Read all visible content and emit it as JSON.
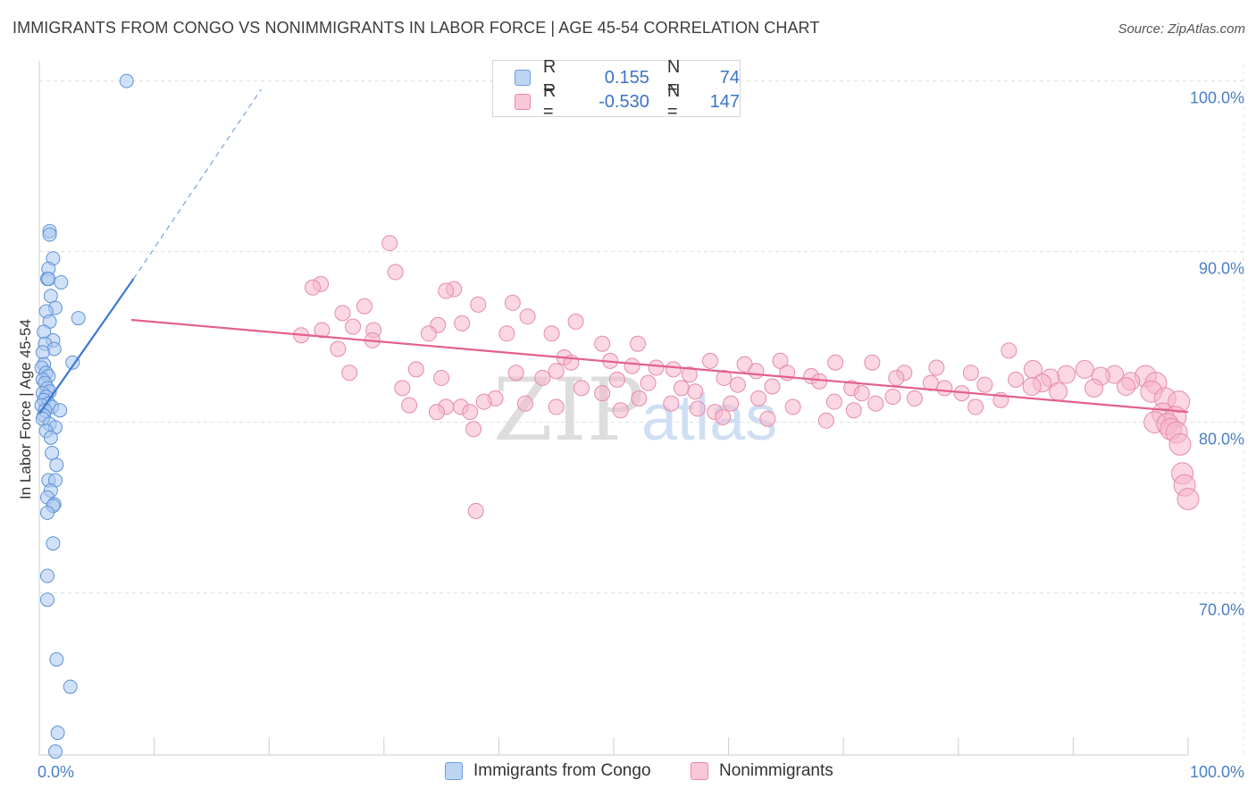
{
  "title": "IMMIGRANTS FROM CONGO VS NONIMMIGRANTS IN LABOR FORCE | AGE 45-54 CORRELATION CHART",
  "source": "Source: ZipAtlas.com",
  "watermark": {
    "zip": "ZIP",
    "atlas": "atlas"
  },
  "legend": {
    "r_label": "R =",
    "n_label": "N =",
    "series1": {
      "r": "0.155",
      "n": "74"
    },
    "series2": {
      "r": "-0.530",
      "n": "147"
    }
  },
  "bottom_legend": {
    "series1": "Immigrants from Congo",
    "series2": "Nonimmigrants"
  },
  "colors": {
    "blue": "#3a78d4",
    "blue_fill": "#a9c8f0",
    "pink": "#e35f8f",
    "pink_fill": "#f5b6cc",
    "tick": "#4a7fc4"
  },
  "chart_data": {
    "type": "scatter",
    "title": "IMMIGRANTS FROM CONGO VS NONIMMIGRANTS IN LABOR FORCE | AGE 45-54 CORRELATION CHART",
    "xlabel": "",
    "ylabel": "In Labor Force | Age 45-54",
    "xlim": [
      0,
      100
    ],
    "ylim": [
      60.5,
      101.5
    ],
    "x_tick_labels": [
      "0.0%",
      "100.0%"
    ],
    "y_ticks": [
      {
        "value": 100,
        "label": "100.0%"
      },
      {
        "value": 90,
        "label": "90.0%"
      },
      {
        "value": 80,
        "label": "80.0%"
      },
      {
        "value": 70,
        "label": "70.0%"
      }
    ],
    "series": [
      {
        "name": "Immigrants from Congo",
        "r": 0.155,
        "n": 74,
        "trend": {
          "x0": 0.0,
          "y0": 80.5,
          "x1": 8.2,
          "y1": 88.4,
          "dash_to_x": 19.3,
          "dash_to_y": 99.5
        },
        "points": [
          [
            7.6,
            100.0
          ],
          [
            0.9,
            91.2
          ],
          [
            0.9,
            91.0
          ],
          [
            1.2,
            89.6
          ],
          [
            0.8,
            89.0
          ],
          [
            0.7,
            88.4
          ],
          [
            0.8,
            88.4
          ],
          [
            1.9,
            88.2
          ],
          [
            1.0,
            87.4
          ],
          [
            1.4,
            86.7
          ],
          [
            0.6,
            86.5
          ],
          [
            3.4,
            86.1
          ],
          [
            0.9,
            85.9
          ],
          [
            0.4,
            85.3
          ],
          [
            1.2,
            84.8
          ],
          [
            0.5,
            84.6
          ],
          [
            1.3,
            84.3
          ],
          [
            0.3,
            84.1
          ],
          [
            2.9,
            83.5
          ],
          [
            0.4,
            83.4
          ],
          [
            0.2,
            83.2
          ],
          [
            0.6,
            82.9
          ],
          [
            0.8,
            82.7
          ],
          [
            0.3,
            82.5
          ],
          [
            0.5,
            82.3
          ],
          [
            0.7,
            82.0
          ],
          [
            0.9,
            81.8
          ],
          [
            0.3,
            81.7
          ],
          [
            0.6,
            81.5
          ],
          [
            0.4,
            81.3
          ],
          [
            0.8,
            81.1
          ],
          [
            0.2,
            81.0
          ],
          [
            1.1,
            80.9
          ],
          [
            0.5,
            80.7
          ],
          [
            1.8,
            80.7
          ],
          [
            0.4,
            80.4
          ],
          [
            0.3,
            80.2
          ],
          [
            0.9,
            79.9
          ],
          [
            1.4,
            79.7
          ],
          [
            0.6,
            79.5
          ],
          [
            1.0,
            79.1
          ],
          [
            1.1,
            78.2
          ],
          [
            1.5,
            77.5
          ],
          [
            0.8,
            76.6
          ],
          [
            1.4,
            76.6
          ],
          [
            1.0,
            76.0
          ],
          [
            0.7,
            75.6
          ],
          [
            1.3,
            75.2
          ],
          [
            1.2,
            75.1
          ],
          [
            0.7,
            74.7
          ],
          [
            1.2,
            72.9
          ],
          [
            0.7,
            71.0
          ],
          [
            0.7,
            69.6
          ],
          [
            1.5,
            66.1
          ],
          [
            2.7,
            64.5
          ],
          [
            1.6,
            61.8
          ],
          [
            1.4,
            60.7
          ]
        ]
      },
      {
        "name": "Nonimmigrants",
        "r": -0.53,
        "n": 147,
        "trend": {
          "x0": 8.0,
          "y0": 86.0,
          "x1": 100.0,
          "y1": 80.6
        },
        "points": [
          [
            30.5,
            90.5
          ],
          [
            31.0,
            88.8
          ],
          [
            24.5,
            88.1
          ],
          [
            23.8,
            87.9
          ],
          [
            36.1,
            87.8
          ],
          [
            35.4,
            87.7
          ],
          [
            41.2,
            87.0
          ],
          [
            38.2,
            86.9
          ],
          [
            28.3,
            86.8
          ],
          [
            26.4,
            86.4
          ],
          [
            42.5,
            86.2
          ],
          [
            36.8,
            85.8
          ],
          [
            46.7,
            85.9
          ],
          [
            34.7,
            85.7
          ],
          [
            27.3,
            85.6
          ],
          [
            24.6,
            85.4
          ],
          [
            29.1,
            85.4
          ],
          [
            33.9,
            85.2
          ],
          [
            22.8,
            85.1
          ],
          [
            40.7,
            85.2
          ],
          [
            44.6,
            85.2
          ],
          [
            29.0,
            84.8
          ],
          [
            52.1,
            84.6
          ],
          [
            49.0,
            84.6
          ],
          [
            26.0,
            84.3
          ],
          [
            84.4,
            84.2
          ],
          [
            45.7,
            83.8
          ],
          [
            46.3,
            83.5
          ],
          [
            58.4,
            83.6
          ],
          [
            49.7,
            83.6
          ],
          [
            64.5,
            83.6
          ],
          [
            61.4,
            83.4
          ],
          [
            69.3,
            83.5
          ],
          [
            72.5,
            83.5
          ],
          [
            51.6,
            83.3
          ],
          [
            53.7,
            83.2
          ],
          [
            32.8,
            83.1
          ],
          [
            45.0,
            83.0
          ],
          [
            55.2,
            83.1
          ],
          [
            78.1,
            83.2
          ],
          [
            86.5,
            83.1
          ],
          [
            91.0,
            83.1
          ],
          [
            27.0,
            82.9
          ],
          [
            41.5,
            82.9
          ],
          [
            56.6,
            82.8
          ],
          [
            62.4,
            83.0
          ],
          [
            65.1,
            82.9
          ],
          [
            75.3,
            82.9
          ],
          [
            81.1,
            82.9
          ],
          [
            89.4,
            82.8
          ],
          [
            93.6,
            82.8
          ],
          [
            35.0,
            82.6
          ],
          [
            43.8,
            82.6
          ],
          [
            50.3,
            82.5
          ],
          [
            59.6,
            82.6
          ],
          [
            67.2,
            82.7
          ],
          [
            74.6,
            82.6
          ],
          [
            85.0,
            82.5
          ],
          [
            88.0,
            82.6
          ],
          [
            92.4,
            82.7
          ],
          [
            96.3,
            82.7
          ],
          [
            53.0,
            82.3
          ],
          [
            60.8,
            82.2
          ],
          [
            67.9,
            82.4
          ],
          [
            77.6,
            82.3
          ],
          [
            82.3,
            82.2
          ],
          [
            87.3,
            82.3
          ],
          [
            95.0,
            82.4
          ],
          [
            97.2,
            82.3
          ],
          [
            31.6,
            82.0
          ],
          [
            47.2,
            82.0
          ],
          [
            55.9,
            82.0
          ],
          [
            63.8,
            82.1
          ],
          [
            70.7,
            82.0
          ],
          [
            78.8,
            82.0
          ],
          [
            86.4,
            82.1
          ],
          [
            91.8,
            82.0
          ],
          [
            94.6,
            82.1
          ],
          [
            49.0,
            81.7
          ],
          [
            57.1,
            81.8
          ],
          [
            71.6,
            81.7
          ],
          [
            80.3,
            81.7
          ],
          [
            88.7,
            81.8
          ],
          [
            96.8,
            81.8
          ],
          [
            39.7,
            81.4
          ],
          [
            52.2,
            81.4
          ],
          [
            62.6,
            81.4
          ],
          [
            74.3,
            81.5
          ],
          [
            76.2,
            81.4
          ],
          [
            83.7,
            81.3
          ],
          [
            98.0,
            81.4
          ],
          [
            42.3,
            81.1
          ],
          [
            55.0,
            81.1
          ],
          [
            60.2,
            81.1
          ],
          [
            69.2,
            81.2
          ],
          [
            72.8,
            81.1
          ],
          [
            36.7,
            80.9
          ],
          [
            45.0,
            80.9
          ],
          [
            57.3,
            80.8
          ],
          [
            65.6,
            80.9
          ],
          [
            81.5,
            80.9
          ],
          [
            99.2,
            81.2
          ],
          [
            50.6,
            80.7
          ],
          [
            58.8,
            80.6
          ],
          [
            70.9,
            80.7
          ],
          [
            59.5,
            80.3
          ],
          [
            63.4,
            80.2
          ],
          [
            68.5,
            80.1
          ],
          [
            97.8,
            80.5
          ],
          [
            98.9,
            80.3
          ],
          [
            97.1,
            80.0
          ],
          [
            98.2,
            79.9
          ],
          [
            98.5,
            79.6
          ],
          [
            99.0,
            79.4
          ],
          [
            99.3,
            78.7
          ],
          [
            99.5,
            77.0
          ],
          [
            99.7,
            76.3
          ],
          [
            100.0,
            75.5
          ],
          [
            37.8,
            79.6
          ],
          [
            35.4,
            80.9
          ],
          [
            38.7,
            81.2
          ],
          [
            32.2,
            81.0
          ],
          [
            34.6,
            80.6
          ],
          [
            37.5,
            80.6
          ],
          [
            38.0,
            74.8
          ]
        ]
      }
    ]
  }
}
